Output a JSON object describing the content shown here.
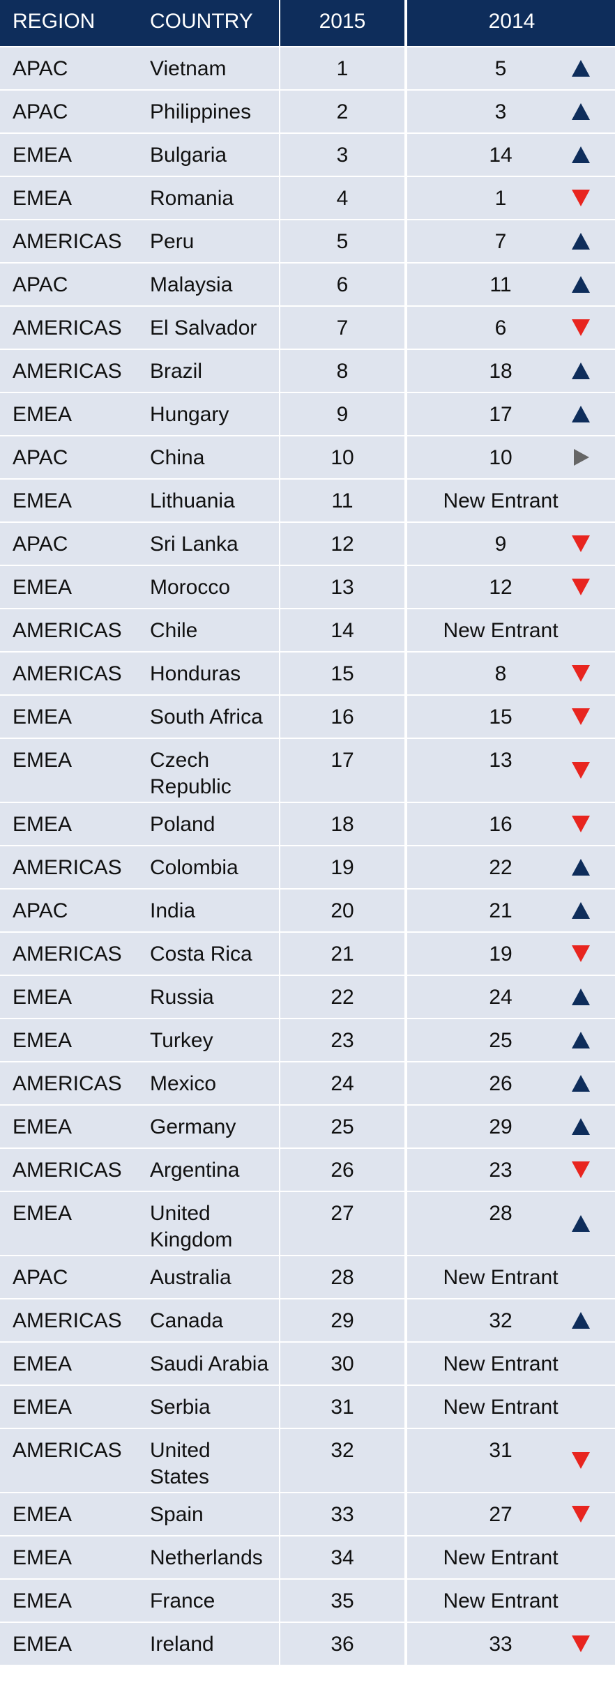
{
  "chart_data": {
    "type": "table",
    "columns": [
      "REGION",
      "COUNTRY",
      "2015",
      "2014"
    ],
    "rows": [
      {
        "region": "APAC",
        "country": "Vietnam",
        "y2015": "1",
        "y2014": "5",
        "trend": "up"
      },
      {
        "region": "APAC",
        "country": "Philippines",
        "y2015": "2",
        "y2014": "3",
        "trend": "up"
      },
      {
        "region": "EMEA",
        "country": "Bulgaria",
        "y2015": "3",
        "y2014": "14",
        "trend": "up"
      },
      {
        "region": "EMEA",
        "country": "Romania",
        "y2015": "4",
        "y2014": "1",
        "trend": "down"
      },
      {
        "region": "AMERICAS",
        "country": "Peru",
        "y2015": "5",
        "y2014": "7",
        "trend": "up"
      },
      {
        "region": "APAC",
        "country": "Malaysia",
        "y2015": "6",
        "y2014": "11",
        "trend": "up"
      },
      {
        "region": "AMERICAS",
        "country": "El Salvador",
        "y2015": "7",
        "y2014": "6",
        "trend": "down"
      },
      {
        "region": "AMERICAS",
        "country": "Brazil",
        "y2015": "8",
        "y2014": "18",
        "trend": "up"
      },
      {
        "region": "EMEA",
        "country": "Hungary",
        "y2015": "9",
        "y2014": "17",
        "trend": "up"
      },
      {
        "region": "APAC",
        "country": "China",
        "y2015": "10",
        "y2014": "10",
        "trend": "same"
      },
      {
        "region": "EMEA",
        "country": "Lithuania",
        "y2015": "11",
        "y2014": "New Entrant",
        "trend": "none"
      },
      {
        "region": "APAC",
        "country": "Sri Lanka",
        "y2015": "12",
        "y2014": "9",
        "trend": "down"
      },
      {
        "region": "EMEA",
        "country": "Morocco",
        "y2015": "13",
        "y2014": "12",
        "trend": "down"
      },
      {
        "region": "AMERICAS",
        "country": "Chile",
        "y2015": "14",
        "y2014": "New Entrant",
        "trend": "none"
      },
      {
        "region": "AMERICAS",
        "country": "Honduras",
        "y2015": "15",
        "y2014": "8",
        "trend": "down"
      },
      {
        "region": "EMEA",
        "country": "South Africa",
        "y2015": "16",
        "y2014": "15",
        "trend": "down"
      },
      {
        "region": "EMEA",
        "country": "Czech Republic",
        "y2015": "17",
        "y2014": "13",
        "trend": "down"
      },
      {
        "region": "EMEA",
        "country": "Poland",
        "y2015": "18",
        "y2014": "16",
        "trend": "down"
      },
      {
        "region": "AMERICAS",
        "country": "Colombia",
        "y2015": "19",
        "y2014": "22",
        "trend": "up"
      },
      {
        "region": "APAC",
        "country": "India",
        "y2015": "20",
        "y2014": "21",
        "trend": "up"
      },
      {
        "region": "AMERICAS",
        "country": "Costa Rica",
        "y2015": "21",
        "y2014": "19",
        "trend": "down"
      },
      {
        "region": "EMEA",
        "country": "Russia",
        "y2015": "22",
        "y2014": "24",
        "trend": "up"
      },
      {
        "region": "EMEA",
        "country": "Turkey",
        "y2015": "23",
        "y2014": "25",
        "trend": "up"
      },
      {
        "region": "AMERICAS",
        "country": "Mexico",
        "y2015": "24",
        "y2014": "26",
        "trend": "up"
      },
      {
        "region": "EMEA",
        "country": "Germany",
        "y2015": "25",
        "y2014": "29",
        "trend": "up"
      },
      {
        "region": "AMERICAS",
        "country": "Argentina",
        "y2015": "26",
        "y2014": "23",
        "trend": "down"
      },
      {
        "region": "EMEA",
        "country": "United Kingdom",
        "y2015": "27",
        "y2014": "28",
        "trend": "up"
      },
      {
        "region": "APAC",
        "country": "Australia",
        "y2015": "28",
        "y2014": "New Entrant",
        "trend": "none"
      },
      {
        "region": "AMERICAS",
        "country": "Canada",
        "y2015": "29",
        "y2014": "32",
        "trend": "up"
      },
      {
        "region": "EMEA",
        "country": "Saudi Arabia",
        "y2015": "30",
        "y2014": "New Entrant",
        "trend": "none"
      },
      {
        "region": "EMEA",
        "country": "Serbia",
        "y2015": "31",
        "y2014": "New Entrant",
        "trend": "none"
      },
      {
        "region": "AMERICAS",
        "country": "United States",
        "y2015": "32",
        "y2014": "31",
        "trend": "down"
      },
      {
        "region": "EMEA",
        "country": "Spain",
        "y2015": "33",
        "y2014": "27",
        "trend": "down"
      },
      {
        "region": "EMEA",
        "country": "Netherlands",
        "y2015": "34",
        "y2014": "New Entrant",
        "trend": "none"
      },
      {
        "region": "EMEA",
        "country": "France",
        "y2015": "35",
        "y2014": "New Entrant",
        "trend": "none"
      },
      {
        "region": "EMEA",
        "country": "Ireland",
        "y2015": "36",
        "y2014": "33",
        "trend": "down"
      }
    ]
  },
  "colors": {
    "header_bg": "#0e2d5b",
    "row_bg": "#dfe4ee",
    "up_arrow": "#0e2d5b",
    "down_arrow": "#e8251f",
    "same_arrow": "#666666"
  }
}
